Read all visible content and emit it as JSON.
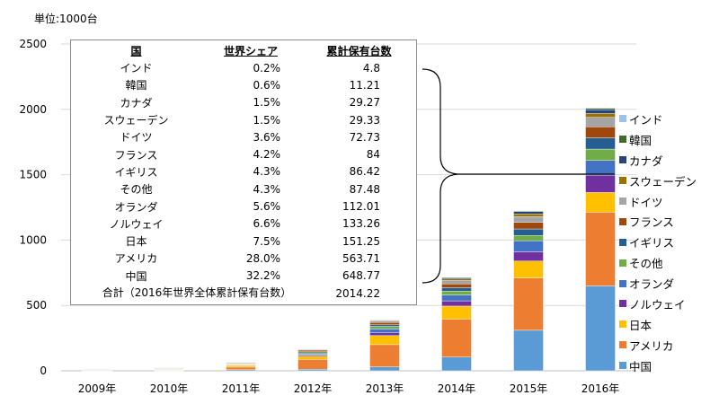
{
  "unit_label": "単位:1000台",
  "table": {
    "headers": [
      "国",
      "世界シェア",
      "累計保有台数"
    ],
    "rows": [
      [
        "インド",
        "0.2%",
        "4.8"
      ],
      [
        "韓国",
        "0.6%",
        "11.21"
      ],
      [
        "カナダ",
        "1.5%",
        "29.27"
      ],
      [
        "スウェーデン",
        "1.5%",
        "29.33"
      ],
      [
        "ドイツ",
        "3.6%",
        "72.73"
      ],
      [
        "フランス",
        "4.2%",
        "84"
      ],
      [
        "イギリス",
        "4.3%",
        "86.42"
      ],
      [
        "その他",
        "4.3%",
        "87.48"
      ],
      [
        "オランダ",
        "5.6%",
        "112.01"
      ],
      [
        "ノルウェイ",
        "6.6%",
        "133.26"
      ],
      [
        "日本",
        "7.5%",
        "151.25"
      ],
      [
        "アメリカ",
        "28.0%",
        "563.71"
      ],
      [
        "中国",
        "32.2%",
        "648.77"
      ]
    ],
    "total_label": "合計（2016年世界全体累計保有台数）",
    "total_value": "2014.22"
  },
  "chart_data": {
    "type": "bar",
    "stacked": true,
    "title": "",
    "xlabel": "",
    "ylabel": "単位:1000台",
    "ylim": [
      0,
      2500
    ],
    "yticks": [
      0,
      500,
      1000,
      1500,
      2000,
      2500
    ],
    "grid": true,
    "legend_position": "right",
    "categories": [
      "2009年",
      "2010年",
      "2011年",
      "2012年",
      "2013年",
      "2014年",
      "2015年",
      "2016年"
    ],
    "series": [
      {
        "name": "中国",
        "color": "#5b9bd5",
        "values": [
          1,
          2,
          8,
          12,
          30,
          105,
          310,
          649
        ]
      },
      {
        "name": "アメリカ",
        "color": "#ed7d31",
        "values": [
          2,
          4,
          20,
          75,
          170,
          290,
          400,
          564
        ]
      },
      {
        "name": "日本",
        "color": "#ffc000",
        "values": [
          1,
          3,
          13,
          25,
          70,
          100,
          130,
          151
        ]
      },
      {
        "name": "ノルウェイ",
        "color": "#7030a0",
        "values": [
          2,
          3,
          4,
          8,
          20,
          40,
          70,
          133
        ]
      },
      {
        "name": "オランダ",
        "color": "#4472c4",
        "values": [
          1,
          2,
          2,
          8,
          30,
          45,
          85,
          112
        ]
      },
      {
        "name": "その他",
        "color": "#70ad47",
        "values": [
          1,
          2,
          4,
          10,
          20,
          30,
          40,
          87
        ]
      },
      {
        "name": "イギリス",
        "color": "#255e91",
        "values": [
          1,
          2,
          3,
          8,
          12,
          25,
          50,
          86
        ]
      },
      {
        "name": "フランス",
        "color": "#9e480e",
        "values": [
          2,
          2,
          5,
          12,
          18,
          30,
          50,
          84
        ]
      },
      {
        "name": "ドイツ",
        "color": "#a5a5a5",
        "values": [
          1,
          2,
          3,
          5,
          12,
          25,
          45,
          73
        ]
      },
      {
        "name": "スウェーデン",
        "color": "#997300",
        "values": [
          1,
          1,
          1,
          2,
          4,
          12,
          20,
          29
        ]
      },
      {
        "name": "カナダ",
        "color": "#264478",
        "values": [
          1,
          1,
          1,
          3,
          5,
          10,
          18,
          29
        ]
      },
      {
        "name": "韓国",
        "color": "#43682b",
        "values": [
          1,
          1,
          1,
          1,
          2,
          3,
          6,
          11
        ]
      },
      {
        "name": "インド",
        "color": "#9dc3e6",
        "values": [
          1,
          1,
          1,
          1,
          1,
          1,
          2,
          5
        ]
      }
    ]
  }
}
